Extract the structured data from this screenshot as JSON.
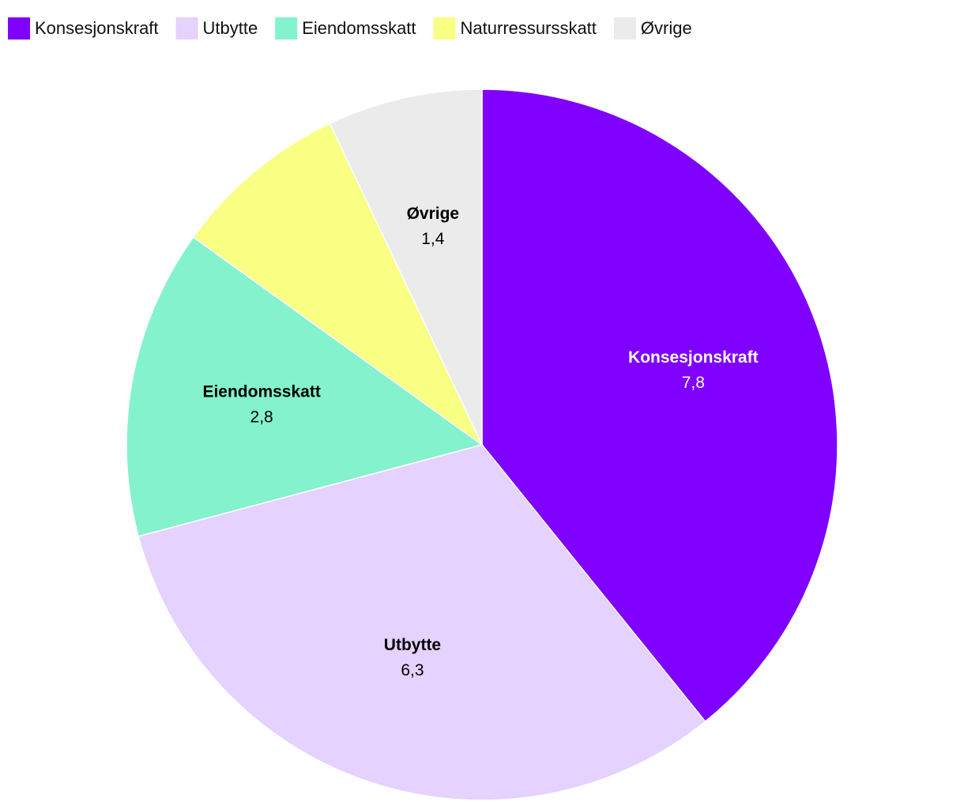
{
  "chart_data": {
    "type": "pie",
    "categories": [
      "Konsesjonskraft",
      "Utbytte",
      "Eiendomsskatt",
      "Naturressursskatt",
      "Øvrige"
    ],
    "values": [
      7.8,
      6.3,
      2.8,
      1.6,
      1.4
    ],
    "value_labels": [
      "7,8",
      "6,3",
      "2,8",
      null,
      "1,4"
    ],
    "colors": [
      "#8000ff",
      "#e5d2ff",
      "#84f2cc",
      "#f8ff82",
      "#ebebeb"
    ],
    "legend": "top-left"
  }
}
